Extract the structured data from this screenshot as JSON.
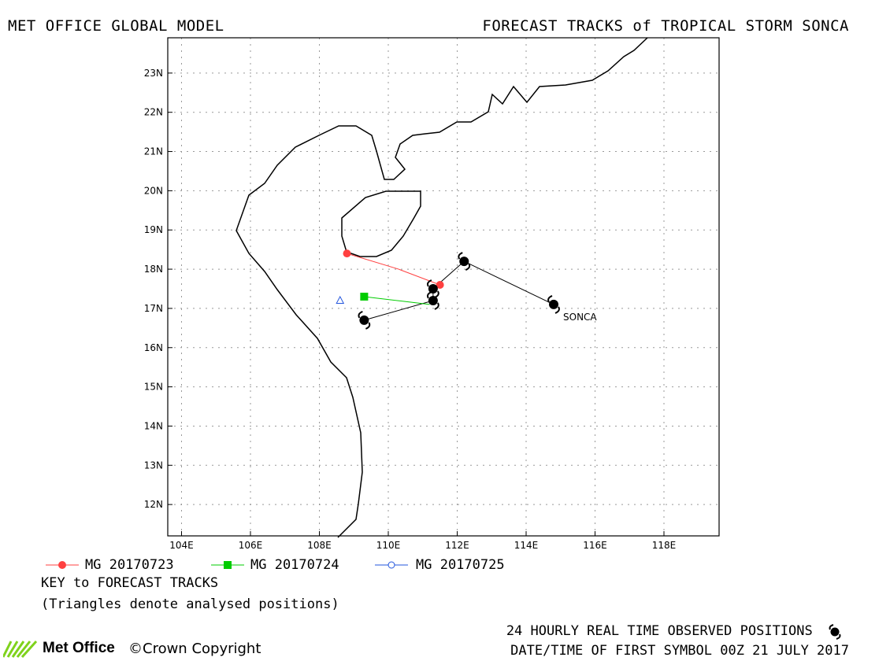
{
  "header": {
    "left_title": "MET OFFICE GLOBAL MODEL",
    "right_title": "FORECAST TRACKS of TROPICAL STORM SONCA"
  },
  "map": {
    "lon_range": [
      103.6,
      119.6
    ],
    "lat_range": [
      11.2,
      23.9
    ],
    "grid": true,
    "x_ticks": [
      "104E",
      "106E",
      "108E",
      "110E",
      "112E",
      "114E",
      "116E",
      "118E"
    ],
    "y_ticks": [
      "12N",
      "13N",
      "14N",
      "15N",
      "16N",
      "17N",
      "18N",
      "19N",
      "20N",
      "21N",
      "22N",
      "23N"
    ],
    "storm_label": "SONCA"
  },
  "chart_data": {
    "type": "scatter",
    "title": "FORECAST TRACKS of TROPICAL STORM SONCA",
    "xlabel": "",
    "ylabel": "",
    "xlim": [
      103.6,
      119.6
    ],
    "ylim": [
      11.2,
      23.9
    ],
    "observed_track": {
      "name": "SONCA",
      "points": [
        [
          114.8,
          17.1
        ],
        [
          112.2,
          18.2
        ],
        [
          111.3,
          17.5
        ],
        [
          111.3,
          17.2
        ],
        [
          109.3,
          16.7
        ]
      ]
    },
    "series": [
      {
        "name": "MG 20170723",
        "color": "#ff4040",
        "marker": "circle",
        "points": [
          [
            111.5,
            17.6
          ],
          [
            110.3,
            18.0
          ],
          [
            108.8,
            18.4
          ]
        ]
      },
      {
        "name": "MG 20170724",
        "color": "#00cc00",
        "marker": "square",
        "points": [
          [
            111.2,
            17.1
          ],
          [
            109.3,
            17.3
          ]
        ]
      },
      {
        "name": "MG 20170725",
        "color": "#2255dd",
        "marker": "circle-open",
        "points": []
      }
    ],
    "analysed_positions": [
      {
        "series": "MG 20170725",
        "color": "#2255dd",
        "point": [
          108.6,
          17.2
        ]
      }
    ]
  },
  "legend": {
    "items": [
      {
        "label": "MG 20170723",
        "color": "#ff4040",
        "marker": "circle"
      },
      {
        "label": "MG 20170724",
        "color": "#00cc00",
        "marker": "square"
      },
      {
        "label": "MG 20170725",
        "color": "#2255dd",
        "marker": "circle-open"
      }
    ]
  },
  "key": {
    "title": "KEY to FORECAST TRACKS",
    "note": "(Triangles denote analysed positions)"
  },
  "footer": {
    "observed_label": "24 HOURLY REAL TIME OBSERVED POSITIONS",
    "first_symbol": "DATE/TIME OF FIRST SYMBOL 00Z 21 JULY 2017",
    "brand": "Met Office",
    "copyright": "©Crown Copyright"
  },
  "colors": {
    "track": "#000000",
    "grid": "#999999",
    "green_logo": "#7fd21c"
  }
}
